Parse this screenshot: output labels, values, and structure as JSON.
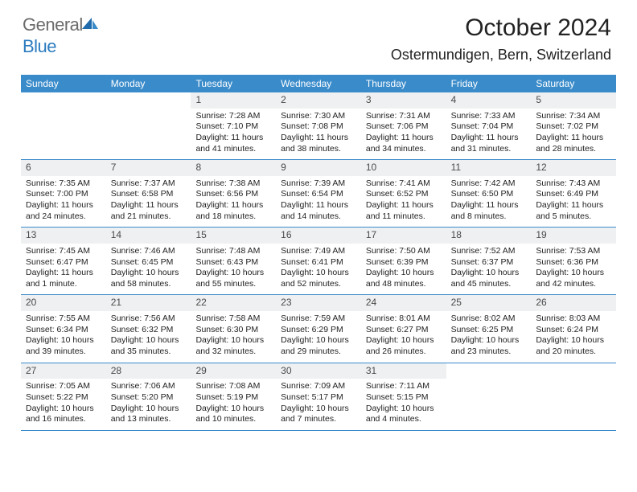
{
  "brand": {
    "part1": "General",
    "part2": "Blue"
  },
  "title": "October 2024",
  "location": "Ostermundigen, Bern, Switzerland",
  "colors": {
    "header_bg": "#3a8bca",
    "header_text": "#ffffff",
    "band_bg": "#eef0f1",
    "rule": "#3a8bca",
    "logo_gray": "#6b6b6b",
    "logo_blue": "#2b7bbf"
  },
  "typography": {
    "title_fontsize": 30,
    "location_fontsize": 18,
    "dayheader_fontsize": 12,
    "cell_fontsize": 10.5
  },
  "day_names": [
    "Sunday",
    "Monday",
    "Tuesday",
    "Wednesday",
    "Thursday",
    "Friday",
    "Saturday"
  ],
  "weeks": [
    [
      null,
      null,
      {
        "n": "1",
        "sr": "7:28 AM",
        "ss": "7:10 PM",
        "dl": "11 hours and 41 minutes."
      },
      {
        "n": "2",
        "sr": "7:30 AM",
        "ss": "7:08 PM",
        "dl": "11 hours and 38 minutes."
      },
      {
        "n": "3",
        "sr": "7:31 AM",
        "ss": "7:06 PM",
        "dl": "11 hours and 34 minutes."
      },
      {
        "n": "4",
        "sr": "7:33 AM",
        "ss": "7:04 PM",
        "dl": "11 hours and 31 minutes."
      },
      {
        "n": "5",
        "sr": "7:34 AM",
        "ss": "7:02 PM",
        "dl": "11 hours and 28 minutes."
      }
    ],
    [
      {
        "n": "6",
        "sr": "7:35 AM",
        "ss": "7:00 PM",
        "dl": "11 hours and 24 minutes."
      },
      {
        "n": "7",
        "sr": "7:37 AM",
        "ss": "6:58 PM",
        "dl": "11 hours and 21 minutes."
      },
      {
        "n": "8",
        "sr": "7:38 AM",
        "ss": "6:56 PM",
        "dl": "11 hours and 18 minutes."
      },
      {
        "n": "9",
        "sr": "7:39 AM",
        "ss": "6:54 PM",
        "dl": "11 hours and 14 minutes."
      },
      {
        "n": "10",
        "sr": "7:41 AM",
        "ss": "6:52 PM",
        "dl": "11 hours and 11 minutes."
      },
      {
        "n": "11",
        "sr": "7:42 AM",
        "ss": "6:50 PM",
        "dl": "11 hours and 8 minutes."
      },
      {
        "n": "12",
        "sr": "7:43 AM",
        "ss": "6:49 PM",
        "dl": "11 hours and 5 minutes."
      }
    ],
    [
      {
        "n": "13",
        "sr": "7:45 AM",
        "ss": "6:47 PM",
        "dl": "11 hours and 1 minute."
      },
      {
        "n": "14",
        "sr": "7:46 AM",
        "ss": "6:45 PM",
        "dl": "10 hours and 58 minutes."
      },
      {
        "n": "15",
        "sr": "7:48 AM",
        "ss": "6:43 PM",
        "dl": "10 hours and 55 minutes."
      },
      {
        "n": "16",
        "sr": "7:49 AM",
        "ss": "6:41 PM",
        "dl": "10 hours and 52 minutes."
      },
      {
        "n": "17",
        "sr": "7:50 AM",
        "ss": "6:39 PM",
        "dl": "10 hours and 48 minutes."
      },
      {
        "n": "18",
        "sr": "7:52 AM",
        "ss": "6:37 PM",
        "dl": "10 hours and 45 minutes."
      },
      {
        "n": "19",
        "sr": "7:53 AM",
        "ss": "6:36 PM",
        "dl": "10 hours and 42 minutes."
      }
    ],
    [
      {
        "n": "20",
        "sr": "7:55 AM",
        "ss": "6:34 PM",
        "dl": "10 hours and 39 minutes."
      },
      {
        "n": "21",
        "sr": "7:56 AM",
        "ss": "6:32 PM",
        "dl": "10 hours and 35 minutes."
      },
      {
        "n": "22",
        "sr": "7:58 AM",
        "ss": "6:30 PM",
        "dl": "10 hours and 32 minutes."
      },
      {
        "n": "23",
        "sr": "7:59 AM",
        "ss": "6:29 PM",
        "dl": "10 hours and 29 minutes."
      },
      {
        "n": "24",
        "sr": "8:01 AM",
        "ss": "6:27 PM",
        "dl": "10 hours and 26 minutes."
      },
      {
        "n": "25",
        "sr": "8:02 AM",
        "ss": "6:25 PM",
        "dl": "10 hours and 23 minutes."
      },
      {
        "n": "26",
        "sr": "8:03 AM",
        "ss": "6:24 PM",
        "dl": "10 hours and 20 minutes."
      }
    ],
    [
      {
        "n": "27",
        "sr": "7:05 AM",
        "ss": "5:22 PM",
        "dl": "10 hours and 16 minutes."
      },
      {
        "n": "28",
        "sr": "7:06 AM",
        "ss": "5:20 PM",
        "dl": "10 hours and 13 minutes."
      },
      {
        "n": "29",
        "sr": "7:08 AM",
        "ss": "5:19 PM",
        "dl": "10 hours and 10 minutes."
      },
      {
        "n": "30",
        "sr": "7:09 AM",
        "ss": "5:17 PM",
        "dl": "10 hours and 7 minutes."
      },
      {
        "n": "31",
        "sr": "7:11 AM",
        "ss": "5:15 PM",
        "dl": "10 hours and 4 minutes."
      },
      null,
      null
    ]
  ],
  "labels": {
    "sunrise": "Sunrise:",
    "sunset": "Sunset:",
    "daylight": "Daylight:"
  }
}
